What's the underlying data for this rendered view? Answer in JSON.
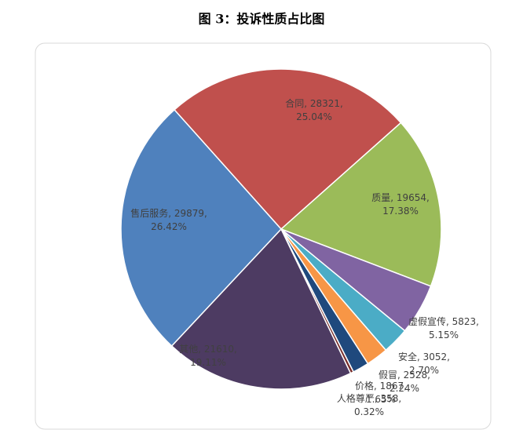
{
  "chart_data": {
    "type": "pie",
    "title": "图 3：投诉性质占比图",
    "categories": [
      "合同",
      "质量",
      "虚假宣传",
      "安全",
      "假冒",
      "价格",
      "人格尊严",
      "其他",
      "售后服务"
    ],
    "values": [
      28321,
      19654,
      5823,
      3052,
      2528,
      1867,
      358,
      21610,
      29879
    ],
    "value_labels": [
      "合同, 28321, 25.04%",
      "质量, 19654, 17.38%",
      "虚假宣传, 5823, 5.15%",
      "安全, 3052, 2.70%",
      "假冒, 2528, 2.24%",
      "价格, 1867, 1.65%",
      "人格尊严, 358, 0.32%",
      "其他, 21610, 19.11%",
      "售后服务, 29879, 26.42%"
    ],
    "colors": [
      "#c0504d",
      "#9bbb59",
      "#8064a2",
      "#4bacc6",
      "#f79646",
      "#1f497d",
      "#772c2a",
      "#4d3b62",
      "#4f81bd"
    ]
  }
}
